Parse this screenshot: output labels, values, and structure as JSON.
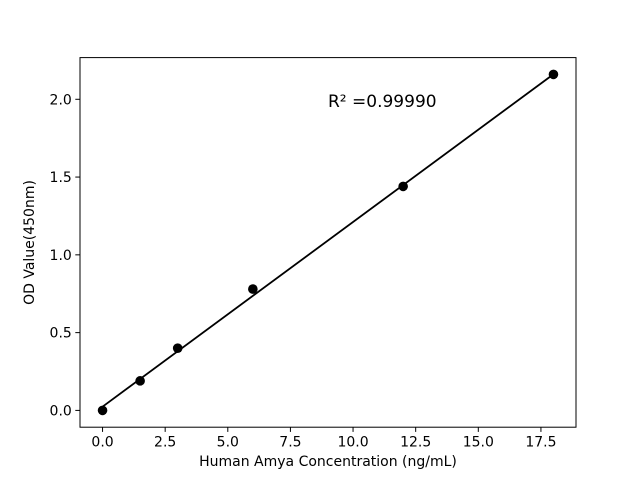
{
  "chart_data": {
    "type": "scatter",
    "title": "",
    "xlabel": "Human Amya Concentration (ng/mL)",
    "ylabel": "OD Value(450nm)",
    "points": {
      "x": [
        0,
        1.5,
        3,
        6,
        12,
        18
      ],
      "y": [
        0.0,
        0.19,
        0.4,
        0.78,
        1.44,
        2.16
      ]
    },
    "fit_line": {
      "slope": 0.1187,
      "intercept": 0.024,
      "x1": 0,
      "y1": 0.024,
      "x2": 18,
      "y2": 2.161
    },
    "annotation": {
      "text": "R² =0.99990",
      "r_squared": "0.99990",
      "x": 9,
      "y": 1.95
    },
    "x_ticks": {
      "values": [
        0,
        2.5,
        5,
        7.5,
        10,
        12.5,
        15,
        17.5
      ],
      "labels": [
        "0.0",
        "2.5",
        "5.0",
        "7.5",
        "10.0",
        "12.5",
        "15.0",
        "17.5"
      ]
    },
    "y_ticks": {
      "values": [
        0,
        0.5,
        1,
        1.5,
        2
      ],
      "labels": [
        "0.0",
        "0.5",
        "1.0",
        "1.5",
        "2.0"
      ]
    },
    "xlim": [
      -0.9,
      18.9
    ],
    "ylim": [
      -0.108,
      2.268
    ],
    "grid": false,
    "legend": "none",
    "marker": {
      "shape": "circle",
      "radius_px": 4.8
    },
    "colors": {
      "marker": "#000000",
      "line": "#000000",
      "text": "#000000",
      "spine": "#000000",
      "background": "#ffffff"
    }
  }
}
